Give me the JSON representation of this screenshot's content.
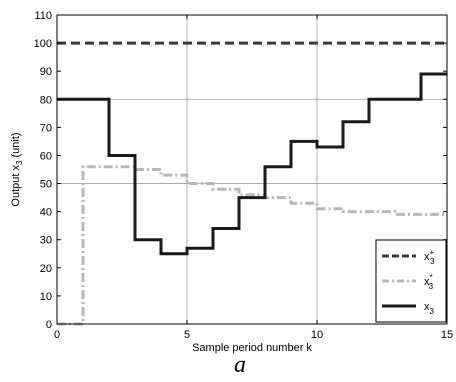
{
  "chart_data": {
    "type": "line",
    "xlabel": "Sample period number k",
    "ylabel": "Output x3 (unit)",
    "ylabel_parts": {
      "main": "Output x",
      "sub": "3",
      "unit": " (unit)"
    },
    "caption": "a",
    "xlim": [
      0,
      15
    ],
    "ylim": [
      0,
      110
    ],
    "x_ticks": [
      0,
      5,
      10,
      15
    ],
    "y_ticks": [
      0,
      10,
      20,
      30,
      40,
      50,
      60,
      70,
      80,
      90,
      100,
      110
    ],
    "grid": true,
    "grid_x": [
      5,
      10
    ],
    "grid_y": [
      50,
      80
    ],
    "legend_position": "bottom-right",
    "series": [
      {
        "name": "x3+",
        "label_main": "x",
        "label_sub": "3",
        "label_sup": "+",
        "style": "dashed",
        "color": "#3a3a3a",
        "points": [
          [
            0,
            100
          ],
          [
            15,
            100
          ]
        ]
      },
      {
        "name": "x3*",
        "label_main": "x",
        "label_sub": "3",
        "label_sup": "*",
        "style": "dashdot",
        "color": "#b8b8b8",
        "points": [
          [
            0,
            0
          ],
          [
            1,
            0
          ],
          [
            1,
            56
          ],
          [
            2,
            56
          ],
          [
            2,
            56
          ],
          [
            3,
            56
          ],
          [
            3,
            55
          ],
          [
            4,
            55
          ],
          [
            4,
            53
          ],
          [
            5,
            53
          ],
          [
            5,
            50
          ],
          [
            6,
            50
          ],
          [
            6,
            48
          ],
          [
            7,
            48
          ],
          [
            7,
            46
          ],
          [
            8,
            46
          ],
          [
            8,
            45
          ],
          [
            9,
            45
          ],
          [
            9,
            43
          ],
          [
            10,
            43
          ],
          [
            10,
            41
          ],
          [
            11,
            41
          ],
          [
            11,
            40
          ],
          [
            12,
            40
          ],
          [
            12,
            40
          ],
          [
            13,
            40
          ],
          [
            13,
            39
          ],
          [
            15,
            39
          ]
        ]
      },
      {
        "name": "x3",
        "label_main": "x",
        "label_sub": "3",
        "label_sup": "",
        "style": "solid",
        "color": "#1a1a1a",
        "points": [
          [
            0,
            80
          ],
          [
            2,
            80
          ],
          [
            2,
            60
          ],
          [
            3,
            60
          ],
          [
            3,
            30
          ],
          [
            4,
            30
          ],
          [
            4,
            25
          ],
          [
            5,
            25
          ],
          [
            5,
            27
          ],
          [
            6,
            27
          ],
          [
            6,
            34
          ],
          [
            7,
            34
          ],
          [
            7,
            45
          ],
          [
            8,
            45
          ],
          [
            8,
            56
          ],
          [
            9,
            56
          ],
          [
            9,
            65
          ],
          [
            10,
            65
          ],
          [
            10,
            63
          ],
          [
            11,
            63
          ],
          [
            11,
            72
          ],
          [
            12,
            72
          ],
          [
            12,
            80
          ],
          [
            14,
            80
          ],
          [
            14,
            89
          ],
          [
            15,
            89
          ]
        ]
      }
    ]
  }
}
